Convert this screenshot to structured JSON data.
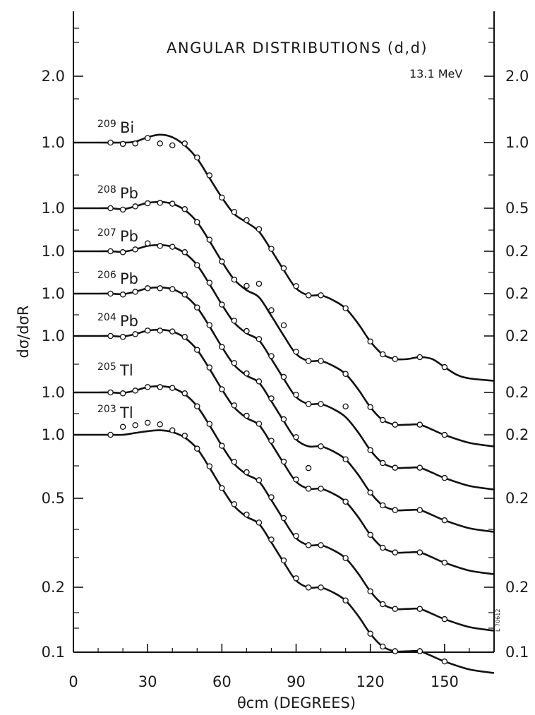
{
  "chart_data": {
    "type": "line",
    "title": "ANGULAR DISTRIBUTIONS (d,d)",
    "subtitle": "13.1 MeV",
    "xlabel": "θcm (DEGREES)",
    "ylabel": "dσ/dσR",
    "xlim": [
      0,
      170
    ],
    "x_ticks": [
      0,
      30,
      60,
      90,
      120,
      150
    ],
    "left_tick_labels": [
      "2.0",
      "1.0",
      "1.0",
      "1.0",
      "1.0",
      "1.0",
      "1.0",
      "1.0",
      "0.5",
      "0.2",
      "0.1"
    ],
    "right_tick_labels": [
      "2.0",
      "1.0",
      "0.5",
      "0.2",
      "0.2",
      "0.2",
      "0.2",
      "0.2",
      "0.2",
      "0.2",
      "0.1"
    ],
    "y_scale": "log (curves offset vertically)",
    "stamp": "L 70612",
    "series": [
      {
        "name": "209Bi",
        "mass": "209",
        "symbol": "Bi",
        "curve_x": [
          0,
          10,
          20,
          25,
          30,
          35,
          40,
          45,
          50,
          55,
          60,
          65,
          70,
          75,
          80,
          85,
          90,
          95,
          100,
          105,
          110,
          115,
          120,
          125,
          130,
          135,
          140,
          145,
          150,
          155,
          160,
          170
        ],
        "curve_y": [
          1.0,
          1.0,
          1.0,
          1.01,
          1.06,
          1.09,
          1.06,
          0.97,
          0.84,
          0.68,
          0.55,
          0.46,
          0.42,
          0.38,
          0.31,
          0.25,
          0.205,
          0.19,
          0.19,
          0.18,
          0.165,
          0.14,
          0.115,
          0.1,
          0.095,
          0.095,
          0.097,
          0.095,
          0.087,
          0.08,
          0.077,
          0.075
        ],
        "points_x": [
          15,
          20,
          25,
          30,
          35,
          40,
          45,
          50,
          55,
          60,
          65,
          70,
          75,
          80,
          85,
          90,
          95,
          100,
          110,
          120,
          125,
          130,
          140,
          150
        ],
        "points_y": [
          1.0,
          0.985,
          0.99,
          1.05,
          0.99,
          0.97,
          0.99,
          0.85,
          0.7,
          0.55,
          0.47,
          0.43,
          0.39,
          0.315,
          0.255,
          0.21,
          0.19,
          0.19,
          0.165,
          0.115,
          0.1,
          0.095,
          0.097,
          0.087
        ]
      },
      {
        "name": "208Pb",
        "mass": "208",
        "symbol": "Pb",
        "curve_x": [
          0,
          10,
          15,
          20,
          25,
          30,
          35,
          40,
          45,
          50,
          55,
          60,
          65,
          70,
          75,
          80,
          85,
          90,
          95,
          100,
          105,
          110,
          115,
          120,
          125,
          130,
          135,
          140,
          145,
          150,
          160,
          170
        ],
        "curve_y": [
          1.0,
          1.0,
          1.0,
          0.99,
          1.02,
          1.06,
          1.07,
          1.05,
          0.98,
          0.86,
          0.7,
          0.56,
          0.46,
          0.41,
          0.38,
          0.31,
          0.25,
          0.205,
          0.19,
          0.19,
          0.18,
          0.165,
          0.14,
          0.115,
          0.1,
          0.095,
          0.095,
          0.095,
          0.09,
          0.085,
          0.078,
          0.075
        ],
        "points_x": [
          15,
          20,
          25,
          30,
          35,
          40,
          45,
          50,
          55,
          60,
          65,
          70,
          75,
          80,
          85,
          90,
          95,
          100,
          110,
          120,
          125,
          130,
          140,
          150
        ],
        "points_y": [
          1.0,
          0.985,
          1.02,
          1.055,
          1.06,
          1.05,
          0.99,
          0.86,
          0.71,
          0.56,
          0.46,
          0.43,
          0.44,
          0.33,
          0.28,
          0.21,
          0.19,
          0.19,
          0.165,
          0.115,
          0.1,
          0.095,
          0.095,
          0.085
        ]
      },
      {
        "name": "207Pb",
        "mass": "207",
        "symbol": "Pb",
        "curve_x": [
          0,
          10,
          15,
          20,
          25,
          30,
          35,
          40,
          45,
          50,
          55,
          60,
          65,
          70,
          75,
          80,
          85,
          90,
          95,
          100,
          105,
          110,
          115,
          120,
          125,
          130,
          135,
          140,
          145,
          150,
          160,
          170
        ],
        "curve_y": [
          1.0,
          1.0,
          1.0,
          0.995,
          1.02,
          1.06,
          1.07,
          1.05,
          0.98,
          0.86,
          0.7,
          0.56,
          0.46,
          0.41,
          0.38,
          0.31,
          0.25,
          0.205,
          0.19,
          0.19,
          0.18,
          0.165,
          0.14,
          0.115,
          0.1,
          0.095,
          0.095,
          0.095,
          0.09,
          0.085,
          0.078,
          0.075
        ],
        "points_x": [
          15,
          20,
          25,
          30,
          35,
          40,
          45,
          50,
          55,
          60,
          65,
          70,
          75,
          80,
          85,
          90,
          95,
          100,
          110,
          120,
          125,
          130,
          140,
          150
        ],
        "points_y": [
          1.0,
          0.99,
          1.02,
          1.09,
          1.06,
          1.05,
          0.99,
          0.86,
          0.71,
          0.56,
          0.47,
          0.42,
          0.385,
          0.32,
          0.255,
          0.21,
          0.19,
          0.19,
          0.185,
          0.115,
          0.1,
          0.095,
          0.095,
          0.085
        ]
      },
      {
        "name": "206Pb",
        "mass": "206",
        "symbol": "Pb",
        "curve_x": [
          0,
          10,
          15,
          20,
          25,
          30,
          35,
          40,
          45,
          50,
          55,
          60,
          65,
          70,
          75,
          80,
          85,
          90,
          95,
          100,
          105,
          110,
          115,
          120,
          125,
          130,
          135,
          140,
          145,
          150,
          160,
          170
        ],
        "curve_y": [
          1.0,
          1.0,
          1.0,
          0.995,
          1.02,
          1.06,
          1.07,
          1.05,
          0.98,
          0.86,
          0.7,
          0.56,
          0.46,
          0.41,
          0.38,
          0.31,
          0.25,
          0.205,
          0.19,
          0.19,
          0.18,
          0.165,
          0.14,
          0.115,
          0.1,
          0.095,
          0.095,
          0.095,
          0.09,
          0.085,
          0.078,
          0.075
        ],
        "points_x": [
          15,
          20,
          25,
          30,
          35,
          40,
          45,
          50,
          55,
          60,
          65,
          70,
          75,
          80,
          85,
          90,
          95,
          100,
          110,
          120,
          125,
          130,
          140,
          150
        ],
        "points_y": [
          1.0,
          0.99,
          1.02,
          1.06,
          1.06,
          1.05,
          0.99,
          0.86,
          0.71,
          0.56,
          0.47,
          0.42,
          0.385,
          0.32,
          0.255,
          0.21,
          0.15,
          0.19,
          0.165,
          0.115,
          0.1,
          0.095,
          0.095,
          0.085
        ]
      },
      {
        "name": "204Pb",
        "mass": "204",
        "symbol": "Pb",
        "curve_x": [
          0,
          10,
          15,
          20,
          25,
          30,
          35,
          40,
          45,
          50,
          55,
          60,
          65,
          70,
          75,
          80,
          85,
          90,
          95,
          100,
          105,
          110,
          115,
          120,
          125,
          130,
          135,
          140,
          145,
          150,
          160,
          170
        ],
        "curve_y": [
          1.0,
          1.0,
          1.0,
          0.995,
          1.02,
          1.06,
          1.07,
          1.05,
          0.98,
          0.86,
          0.7,
          0.56,
          0.46,
          0.41,
          0.38,
          0.31,
          0.25,
          0.205,
          0.19,
          0.19,
          0.18,
          0.165,
          0.14,
          0.115,
          0.1,
          0.095,
          0.095,
          0.095,
          0.09,
          0.085,
          0.078,
          0.075
        ],
        "points_x": [
          15,
          20,
          25,
          30,
          35,
          40,
          45,
          50,
          55,
          60,
          65,
          70,
          75,
          80,
          85,
          90,
          95,
          100,
          110,
          120,
          125,
          130,
          140,
          150
        ],
        "points_y": [
          1.0,
          0.99,
          1.02,
          1.06,
          1.06,
          1.05,
          0.99,
          0.86,
          0.71,
          0.56,
          0.47,
          0.42,
          0.385,
          0.32,
          0.255,
          0.21,
          0.19,
          0.19,
          0.165,
          0.115,
          0.1,
          0.095,
          0.095,
          0.085
        ]
      },
      {
        "name": "205Tl",
        "mass": "205",
        "symbol": "Tl",
        "curve_x": [
          0,
          10,
          15,
          20,
          25,
          30,
          35,
          40,
          45,
          50,
          55,
          60,
          65,
          70,
          75,
          80,
          85,
          90,
          95,
          100,
          105,
          110,
          115,
          120,
          125,
          130,
          135,
          140,
          145,
          150,
          160,
          170
        ],
        "curve_y": [
          1.0,
          1.0,
          1.0,
          0.995,
          1.02,
          1.06,
          1.07,
          1.05,
          0.98,
          0.86,
          0.7,
          0.56,
          0.46,
          0.41,
          0.38,
          0.31,
          0.25,
          0.205,
          0.19,
          0.19,
          0.18,
          0.165,
          0.14,
          0.115,
          0.1,
          0.095,
          0.095,
          0.095,
          0.09,
          0.085,
          0.078,
          0.075
        ],
        "points_x": [
          15,
          20,
          25,
          30,
          35,
          40,
          45,
          50,
          55,
          60,
          65,
          70,
          75,
          80,
          85,
          90,
          95,
          100,
          110,
          120,
          125,
          130,
          140,
          150
        ],
        "points_y": [
          1.0,
          0.99,
          1.02,
          1.06,
          1.06,
          1.05,
          0.99,
          0.86,
          0.71,
          0.56,
          0.47,
          0.42,
          0.385,
          0.32,
          0.255,
          0.21,
          0.19,
          0.19,
          0.165,
          0.115,
          0.1,
          0.095,
          0.095,
          0.085
        ]
      },
      {
        "name": "203Tl",
        "mass": "203",
        "symbol": "Tl",
        "curve_x": [
          0,
          10,
          15,
          20,
          25,
          30,
          35,
          40,
          45,
          50,
          55,
          60,
          65,
          70,
          75,
          80,
          85,
          90,
          95,
          100,
          105,
          110,
          115,
          120,
          125,
          130,
          135,
          140,
          145,
          150,
          160,
          170
        ],
        "curve_y": [
          1.0,
          1.0,
          1.0,
          1.0,
          1.02,
          1.04,
          1.05,
          1.03,
          0.97,
          0.86,
          0.7,
          0.56,
          0.46,
          0.41,
          0.38,
          0.31,
          0.25,
          0.205,
          0.19,
          0.19,
          0.18,
          0.165,
          0.14,
          0.115,
          0.1,
          0.095,
          0.095,
          0.095,
          0.09,
          0.085,
          0.078,
          0.075
        ],
        "points_x": [
          15,
          20,
          25,
          30,
          35,
          40,
          45,
          50,
          55,
          60,
          65,
          70,
          75,
          80,
          85,
          90,
          95,
          100,
          110,
          120,
          125,
          130,
          140,
          150
        ],
        "points_y": [
          1.0,
          1.09,
          1.11,
          1.14,
          1.12,
          1.05,
          0.99,
          0.86,
          0.71,
          0.56,
          0.47,
          0.42,
          0.385,
          0.32,
          0.255,
          0.21,
          0.19,
          0.19,
          0.165,
          0.115,
          0.1,
          0.095,
          0.095,
          0.085
        ]
      }
    ]
  }
}
